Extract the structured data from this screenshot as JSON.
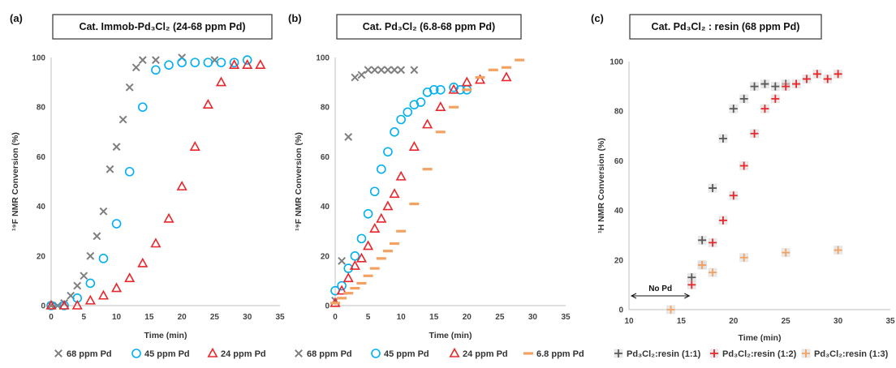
{
  "chart_data": [
    {
      "type": "scatter",
      "panel_label": "(a)",
      "title": "Cat. Immob-Pd₃Cl₂ (24-68 ppm Pd)",
      "xlabel": "Time (min)",
      "ylabel": "¹⁹F NMR Conversion (%)",
      "xlim": [
        0,
        35
      ],
      "ylim": [
        0,
        100
      ],
      "xticks": [
        0,
        5,
        10,
        15,
        20,
        25,
        30,
        35
      ],
      "yticks": [
        0,
        20,
        40,
        60,
        80,
        100
      ],
      "grid": false,
      "legend_position": "bottom",
      "series": [
        {
          "name": "68 ppm Pd",
          "marker": "x",
          "color": "#7f7f7f",
          "x": [
            0,
            1,
            2,
            3,
            4,
            5,
            6,
            7,
            8,
            9,
            10,
            11,
            12,
            13,
            14,
            16,
            20,
            25
          ],
          "y": [
            0,
            0,
            1,
            4,
            8,
            12,
            20,
            28,
            38,
            55,
            64,
            75,
            88,
            96,
            99,
            99,
            100,
            99
          ]
        },
        {
          "name": "45 ppm Pd",
          "marker": "circle",
          "color": "#00b0f0",
          "x": [
            0,
            2,
            4,
            6,
            8,
            10,
            12,
            14,
            16,
            18,
            20,
            22,
            24,
            26,
            28,
            30
          ],
          "y": [
            0,
            0,
            3,
            9,
            19,
            33,
            54,
            80,
            95,
            97,
            98,
            98,
            98,
            98,
            98,
            99
          ]
        },
        {
          "name": "24 ppm Pd",
          "marker": "triangle",
          "color": "#e8262b",
          "x": [
            0,
            2,
            4,
            6,
            8,
            10,
            12,
            14,
            16,
            18,
            20,
            22,
            24,
            26,
            28,
            30,
            32
          ],
          "y": [
            0,
            0,
            0,
            2,
            4,
            7,
            11,
            17,
            25,
            35,
            48,
            64,
            81,
            90,
            97,
            97,
            97
          ]
        }
      ]
    },
    {
      "type": "scatter",
      "panel_label": "(b)",
      "title": "Cat. Pd₃Cl₂ (6.8-68 ppm Pd)",
      "xlabel": "Time (min)",
      "ylabel": "¹⁹F NMR Conversion (%)",
      "xlim": [
        0,
        35
      ],
      "ylim": [
        0,
        100
      ],
      "xticks": [
        0,
        5,
        10,
        15,
        20,
        25,
        30,
        35
      ],
      "yticks": [
        0,
        20,
        40,
        60,
        80,
        100
      ],
      "grid": false,
      "legend_position": "bottom",
      "series": [
        {
          "name": "68 ppm Pd",
          "marker": "x",
          "color": "#7f7f7f",
          "x": [
            0,
            1,
            2,
            3,
            4,
            5,
            6,
            7,
            8,
            9,
            10,
            12
          ],
          "y": [
            2,
            18,
            68,
            92,
            93,
            95,
            95,
            95,
            95,
            95,
            95,
            95
          ]
        },
        {
          "name": "45 ppm Pd",
          "marker": "circle",
          "color": "#00b0f0",
          "x": [
            0,
            1,
            2,
            3,
            4,
            5,
            6,
            7,
            8,
            9,
            10,
            11,
            12,
            13,
            14,
            15,
            16,
            18,
            19,
            20
          ],
          "y": [
            6,
            8,
            15,
            20,
            27,
            37,
            46,
            55,
            62,
            70,
            75,
            78,
            81,
            82,
            86,
            87,
            87,
            88,
            87,
            87
          ]
        },
        {
          "name": "24 ppm Pd",
          "marker": "triangle",
          "color": "#e8262b",
          "x": [
            0,
            1,
            2,
            3,
            4,
            5,
            6,
            7,
            8,
            9,
            10,
            12,
            14,
            16,
            18,
            20,
            22,
            26
          ],
          "y": [
            1,
            6,
            11,
            16,
            19,
            24,
            31,
            35,
            40,
            45,
            52,
            64,
            73,
            80,
            87,
            90,
            91,
            92
          ]
        },
        {
          "name": "6.8 ppm Pd",
          "marker": "dash",
          "color": "#f4a261",
          "x": [
            0,
            1,
            2,
            3,
            4,
            5,
            6,
            7,
            8,
            9,
            10,
            12,
            14,
            16,
            18,
            20,
            22,
            24,
            26,
            28
          ],
          "y": [
            1,
            3,
            5,
            7,
            9,
            12,
            15,
            19,
            22,
            25,
            30,
            41,
            55,
            70,
            80,
            87,
            92,
            95,
            96,
            99
          ]
        }
      ]
    },
    {
      "type": "scatter",
      "panel_label": "(c)",
      "title": "Cat. Pd₃Cl₂ : resin (68 ppm Pd)",
      "xlabel": "Time (min)",
      "ylabel": "¹H NMR Conversion  (%)",
      "xlim": [
        10,
        35
      ],
      "ylim": [
        0,
        100
      ],
      "xticks": [
        10,
        15,
        20,
        25,
        30,
        35
      ],
      "yticks": [
        0,
        20,
        40,
        60,
        80,
        100
      ],
      "grid": false,
      "legend_position": "bottom",
      "annotation": "No Pd",
      "series": [
        {
          "name": "Pd₃Cl₂:resin (1:1)",
          "marker": "plus",
          "color": "#595959",
          "x": [
            16,
            17,
            18,
            19,
            20,
            21,
            22,
            23,
            24,
            25
          ],
          "y": [
            13,
            28,
            49,
            69,
            81,
            85,
            90,
            91,
            90,
            91
          ]
        },
        {
          "name": "Pd₃Cl₂:resin (1:2)",
          "marker": "plus",
          "color": "#e8262b",
          "x": [
            16,
            17,
            18,
            19,
            20,
            21,
            22,
            23,
            24,
            25,
            26,
            27,
            28,
            29,
            30
          ],
          "y": [
            10,
            18,
            27,
            36,
            46,
            58,
            71,
            81,
            85,
            90,
            91,
            93,
            95,
            93,
            95
          ]
        },
        {
          "name": "Pd₃Cl₂:resin (1:3)",
          "marker": "plus",
          "color": "#f4a261",
          "x": [
            14,
            17,
            18,
            21,
            25,
            30
          ],
          "y": [
            0,
            18,
            15,
            21,
            23,
            24
          ]
        }
      ]
    }
  ]
}
